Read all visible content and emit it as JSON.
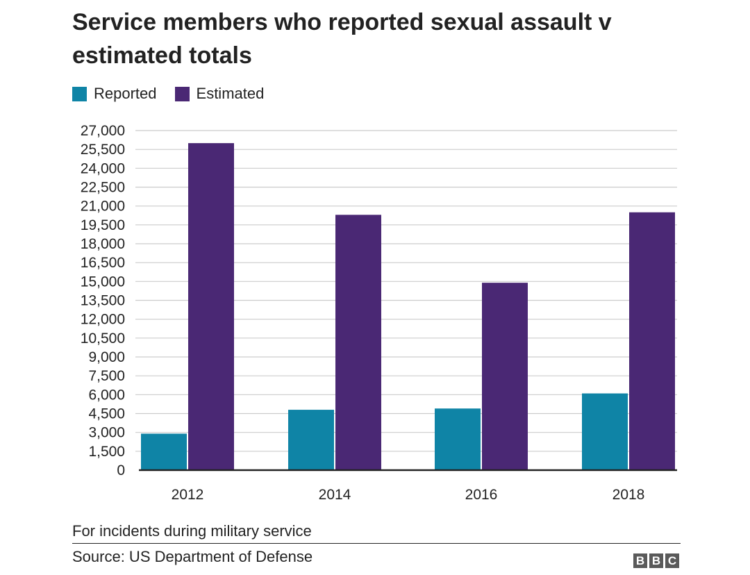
{
  "header": {
    "title": "Service members who reported sexual assault v estimated totals"
  },
  "legend": [
    {
      "label": "Reported",
      "color": "#0f84a6"
    },
    {
      "label": "Estimated",
      "color": "#4a2874"
    }
  ],
  "chart_data": {
    "type": "bar",
    "title": "Service members who reported sexual assault v estimated totals",
    "categories": [
      "2012",
      "2014",
      "2016",
      "2018"
    ],
    "series": [
      {
        "name": "Reported",
        "color": "#0f84a6",
        "values": [
          2900,
          4800,
          4900,
          6100
        ]
      },
      {
        "name": "Estimated",
        "color": "#4a2874",
        "values": [
          26000,
          20300,
          14900,
          20500
        ]
      }
    ],
    "ylim": [
      0,
      27000
    ],
    "yticks": [
      0,
      1500,
      3000,
      4500,
      6000,
      7500,
      9000,
      10500,
      12000,
      13500,
      15000,
      16500,
      18000,
      19500,
      21000,
      22500,
      24000,
      25500,
      27000
    ],
    "ytick_labels": [
      "0",
      "1,500",
      "3,000",
      "4,500",
      "6,000",
      "7,500",
      "9,000",
      "10,500",
      "12,000",
      "13,500",
      "15,000",
      "16,500",
      "18,000",
      "19,500",
      "21,000",
      "22,500",
      "24,000",
      "25,500",
      "27,000"
    ],
    "xlabel": "",
    "ylabel": "",
    "grid": true,
    "legend_position": "top-left"
  },
  "footer": {
    "note": "For incidents during military service",
    "source": "Source: US Department of Defense",
    "logo_letters": [
      "B",
      "B",
      "C"
    ]
  }
}
